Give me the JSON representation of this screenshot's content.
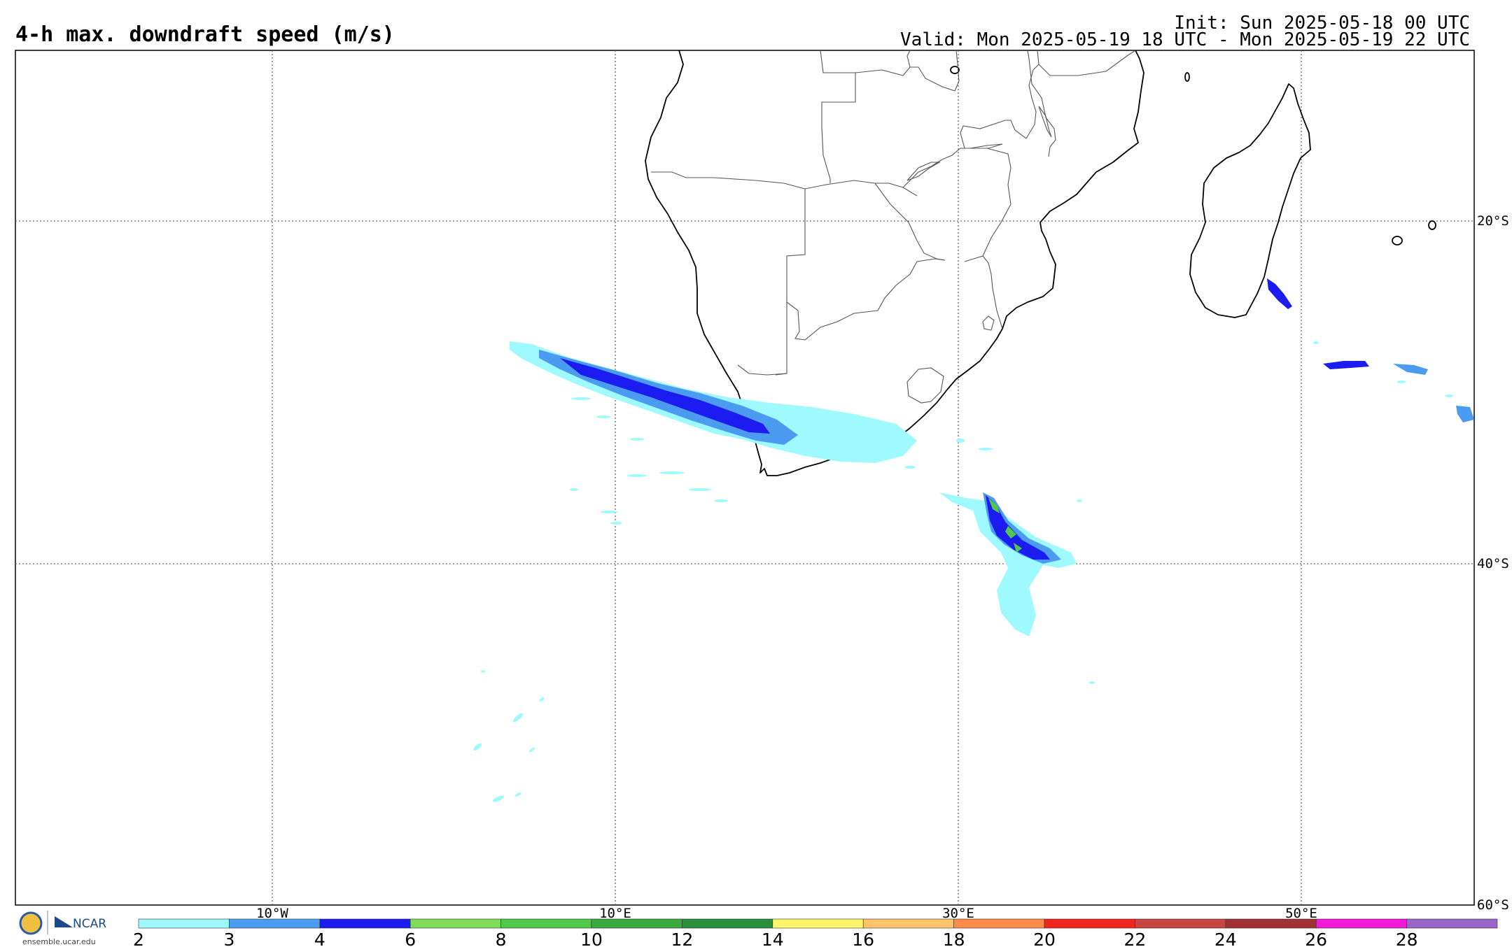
{
  "header": {
    "title": "4-h max. downdraft speed (m/s)",
    "init": "Init: Sun 2025-05-18 00 UTC",
    "valid": "Valid: Mon 2025-05-19 18 UTC - Mon 2025-05-19 22 UTC"
  },
  "map": {
    "lat_labels": [
      "20°S",
      "40°S",
      "60°S"
    ],
    "lon_labels": [
      "10°W",
      "10°E",
      "30°E",
      "50°E"
    ]
  },
  "colorbar": {
    "ticks": [
      "2",
      "3",
      "4",
      "6",
      "8",
      "10",
      "12",
      "14",
      "16",
      "18",
      "20",
      "22",
      "24",
      "26",
      "28"
    ],
    "colors": [
      "#9ffaff",
      "#4b9bf0",
      "#1c1cf0",
      "#7ddc5a",
      "#52c84b",
      "#3aaa3f",
      "#2a8f3a",
      "#fff56a",
      "#ffc46a",
      "#ff8a4b",
      "#f0261e",
      "#c8463f",
      "#a03232",
      "#f019d8",
      "#9a64c8"
    ]
  },
  "logo": {
    "org": "NCAR",
    "url": "ensemble.ucar.edu"
  }
}
